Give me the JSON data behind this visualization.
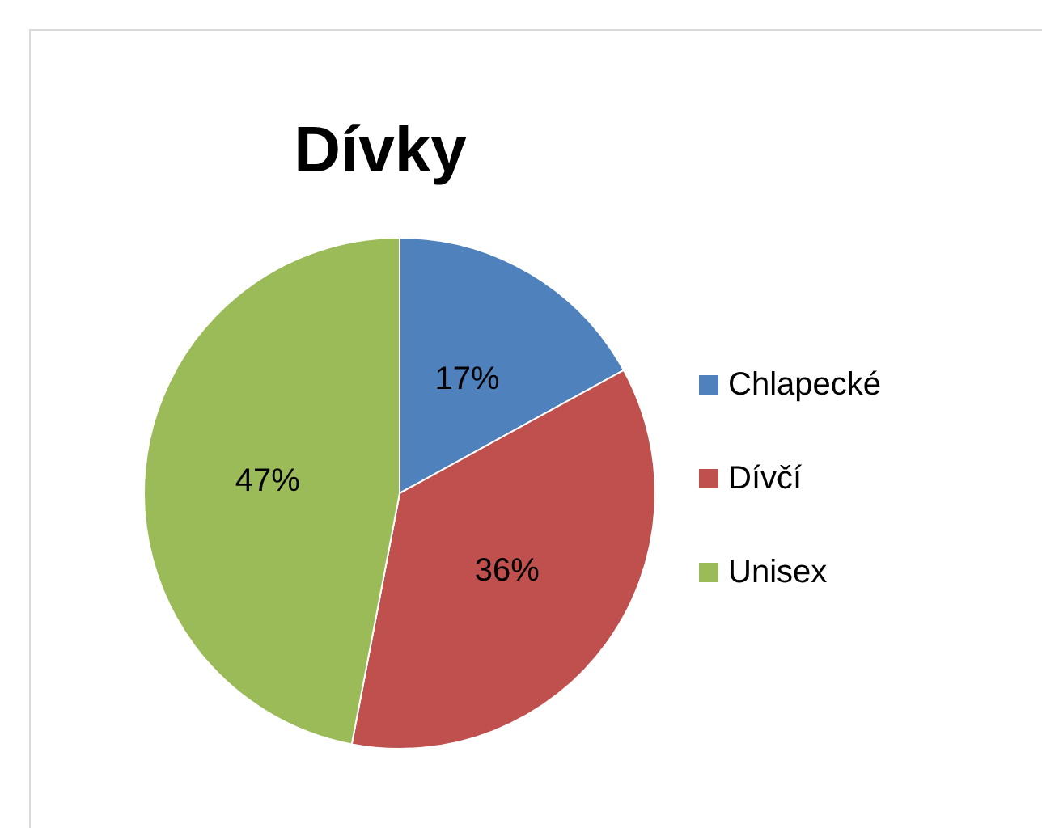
{
  "chart_data": {
    "type": "pie",
    "title": "Dívky",
    "categories": [
      "Chlapecké",
      "Dívčí",
      "Unisex"
    ],
    "values": [
      17,
      36,
      47
    ],
    "colors": [
      "#4f81bd",
      "#c0504d",
      "#9bbb59"
    ],
    "value_labels": [
      "17%",
      "36%",
      "47%"
    ],
    "legend": "right"
  }
}
